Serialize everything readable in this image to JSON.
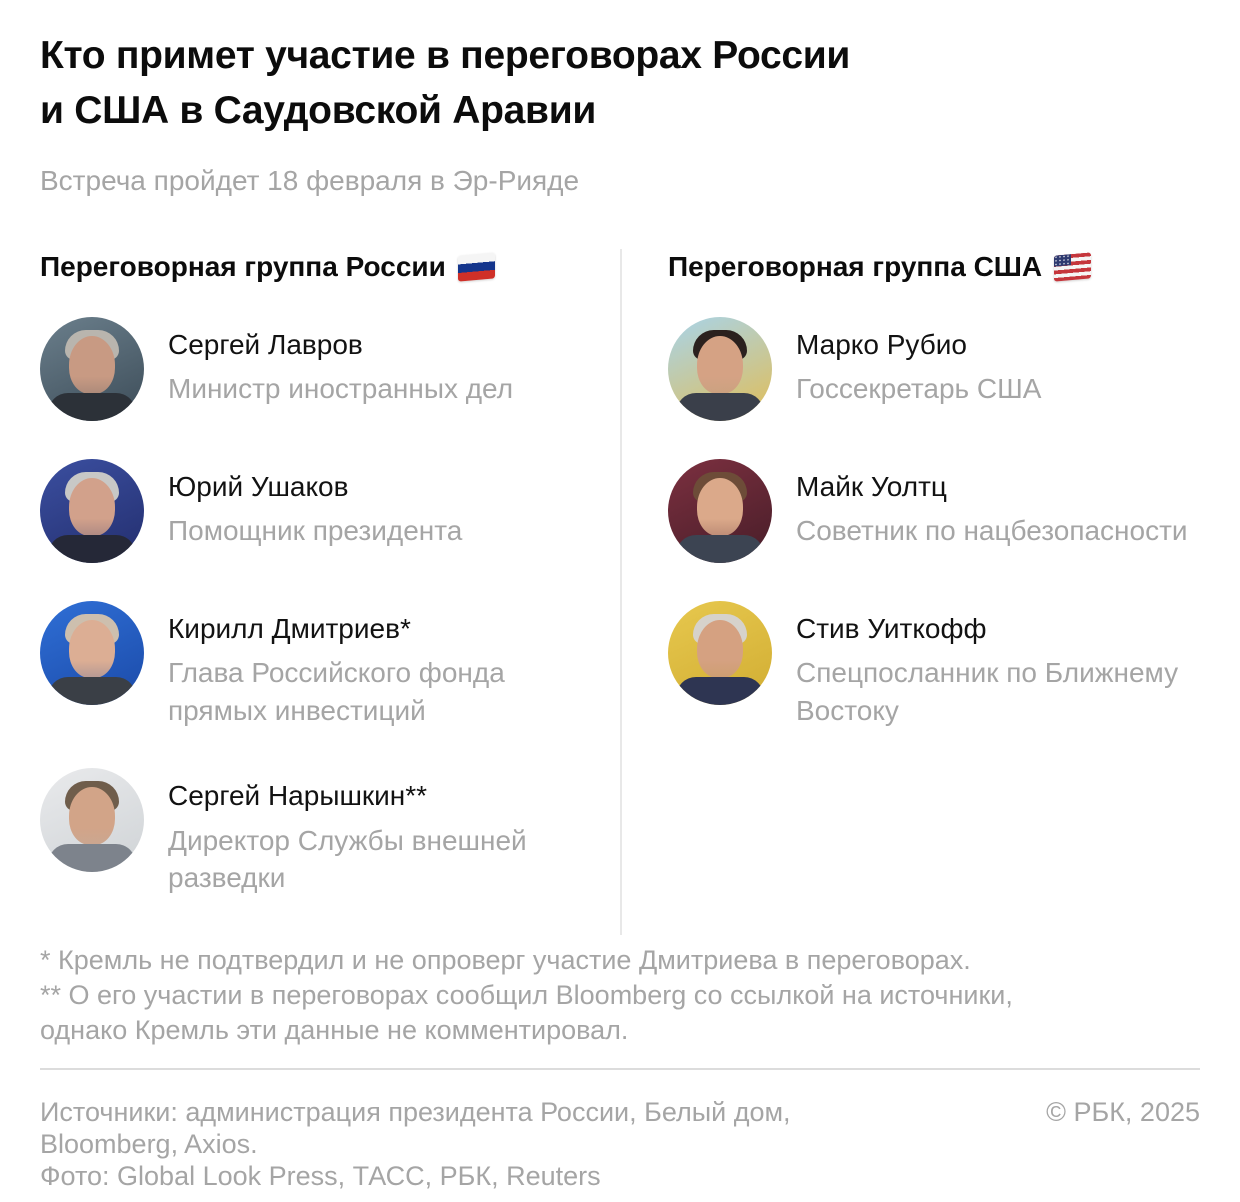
{
  "page": {
    "title_lines": [
      "Кто примет участие в переговорах России",
      "и США в Саудовской Аравии"
    ],
    "subtitle": "Встреча пройдет 18 февраля в Эр-Рияде"
  },
  "groups": [
    {
      "header": "Переговорная группа России",
      "flag": "russia",
      "people": [
        {
          "name": "Сергей Лавров",
          "role": "Министр иностранных дел"
        },
        {
          "name": "Юрий Ушаков",
          "role": "Помощник президента"
        },
        {
          "name": "Кирилл Дмитриев*",
          "role": "Глава Российского фонда прямых инвестиций"
        },
        {
          "name": "Сергей Нарышкин**",
          "role": "Директор Службы внешней разведки"
        }
      ]
    },
    {
      "header": "Переговорная группа США",
      "flag": "usa",
      "people": [
        {
          "name": "Марко Рубио",
          "role": "Госсекретарь США"
        },
        {
          "name": "Майк Уолтц",
          "role": "Советник по нацбезопасности"
        },
        {
          "name": "Стив Уиткофф",
          "role": "Спецпосланник по Ближнему Востоку"
        }
      ]
    }
  ],
  "footnote_lines": [
    "* Кремль не подтвердил и не опроверг участие Дмитриева в переговорах.",
    "** О его участии в переговорах сообщил Bloomberg со ссылкой на источники,",
    "однако Кремль эти данные не комментировал."
  ],
  "footer": {
    "source_lines": [
      "Источники: администрация президента России, Белый дом,",
      "Bloomberg, Axios."
    ],
    "photo_line": "Фото: Global Look Press, ТАСС, РБК, Reuters",
    "copyright": "© РБК, 2025"
  },
  "colors": {
    "title_text": "#0c0c0c",
    "secondary_text": "#a5a5a5",
    "column_divider": "#e8e8e8",
    "footer_rule": "#dcdcdc",
    "ru_flag": [
      "#f5f5f5",
      "#14358c",
      "#cf3028"
    ],
    "us_flag": [
      "#c5363c",
      "#f5f5f5",
      "#2e3a70"
    ]
  },
  "avatars": {
    "lavrov": {
      "bg1": "#6b7f8c",
      "bg2": "#3c4c58",
      "skin": "#c89a83",
      "hair": "#b9b5ae",
      "suit": "#2c3138"
    },
    "ushakov": {
      "bg1": "#3b4fa0",
      "bg2": "#232e6e",
      "skin": "#d2a18b",
      "hair": "#c8c8c6",
      "suit": "#252837"
    },
    "dmitriev": {
      "bg1": "#2f6fd6",
      "bg2": "#1b4aa8",
      "skin": "#dcae94",
      "hair": "#cdbfae",
      "suit": "#3a3f46"
    },
    "naryshkin": {
      "bg1": "#e9eaec",
      "bg2": "#cfd3d6",
      "skin": "#d2a488",
      "hair": "#6f5d4b",
      "suit": "#7d838c"
    },
    "rubio": {
      "bg1": "#a8d4ea",
      "bg2": "#e2bd55",
      "skin": "#d5a284",
      "hair": "#2b211e",
      "suit": "#3a3f4a"
    },
    "waltz": {
      "bg1": "#7c3040",
      "bg2": "#471d28",
      "skin": "#dba98a",
      "hair": "#6d4c38",
      "suit": "#3c4452"
    },
    "witkoff": {
      "bg1": "#e7c84e",
      "bg2": "#d1ad33",
      "skin": "#d5a181",
      "hair": "#d6d2cb",
      "suit": "#2e3552"
    }
  }
}
